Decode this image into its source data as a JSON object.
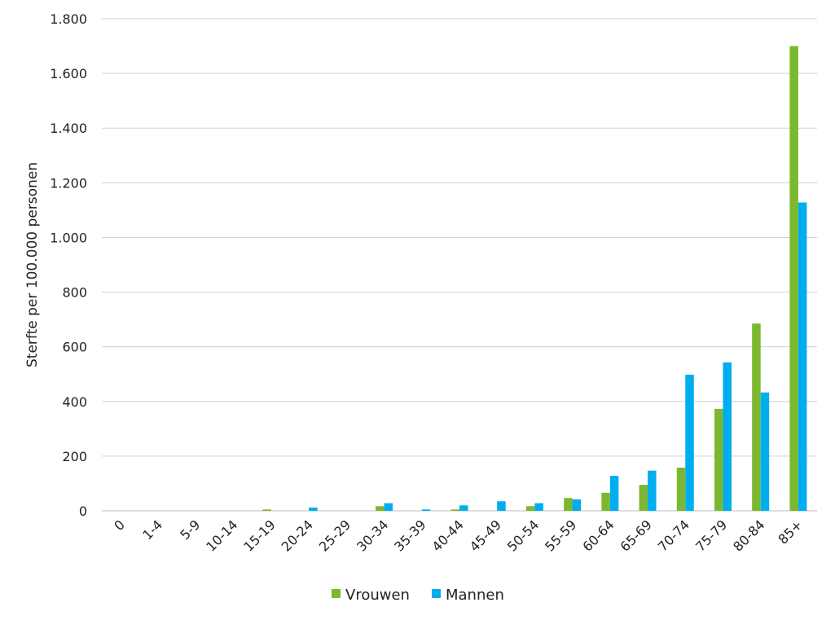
{
  "chart_data": {
    "type": "bar",
    "categories": [
      "0",
      "1-4",
      "5-9",
      "10-14",
      "15-19",
      "20-24",
      "25-29",
      "30-34",
      "35-39",
      "40-44",
      "45-49",
      "50-54",
      "55-59",
      "60-64",
      "65-69",
      "70-74",
      "75-79",
      "80-84",
      "85+"
    ],
    "series": [
      {
        "name": "Vrouwen",
        "color": "#7cb82f",
        "values": [
          0,
          0,
          0,
          0,
          5,
          0,
          0,
          17,
          0,
          5,
          0,
          17,
          47,
          66,
          95,
          158,
          373,
          685,
          1700
        ]
      },
      {
        "name": "Mannen",
        "color": "#00aeef",
        "values": [
          0,
          0,
          0,
          0,
          0,
          12,
          0,
          28,
          5,
          20,
          35,
          28,
          42,
          128,
          147,
          498,
          543,
          433,
          1128
        ]
      }
    ],
    "ylabel": "Sterfte per 100.000 personen",
    "xlabel": "",
    "ylim": [
      0,
      1800
    ],
    "yticks": [
      0,
      200,
      400,
      600,
      800,
      1000,
      1200,
      1400,
      1600,
      1800
    ],
    "ytick_labels": [
      "0",
      "200",
      "400",
      "600",
      "800",
      "1.000",
      "1.200",
      "1.400",
      "1.600",
      "1.800"
    ],
    "grid": true,
    "legend": "bottom"
  }
}
